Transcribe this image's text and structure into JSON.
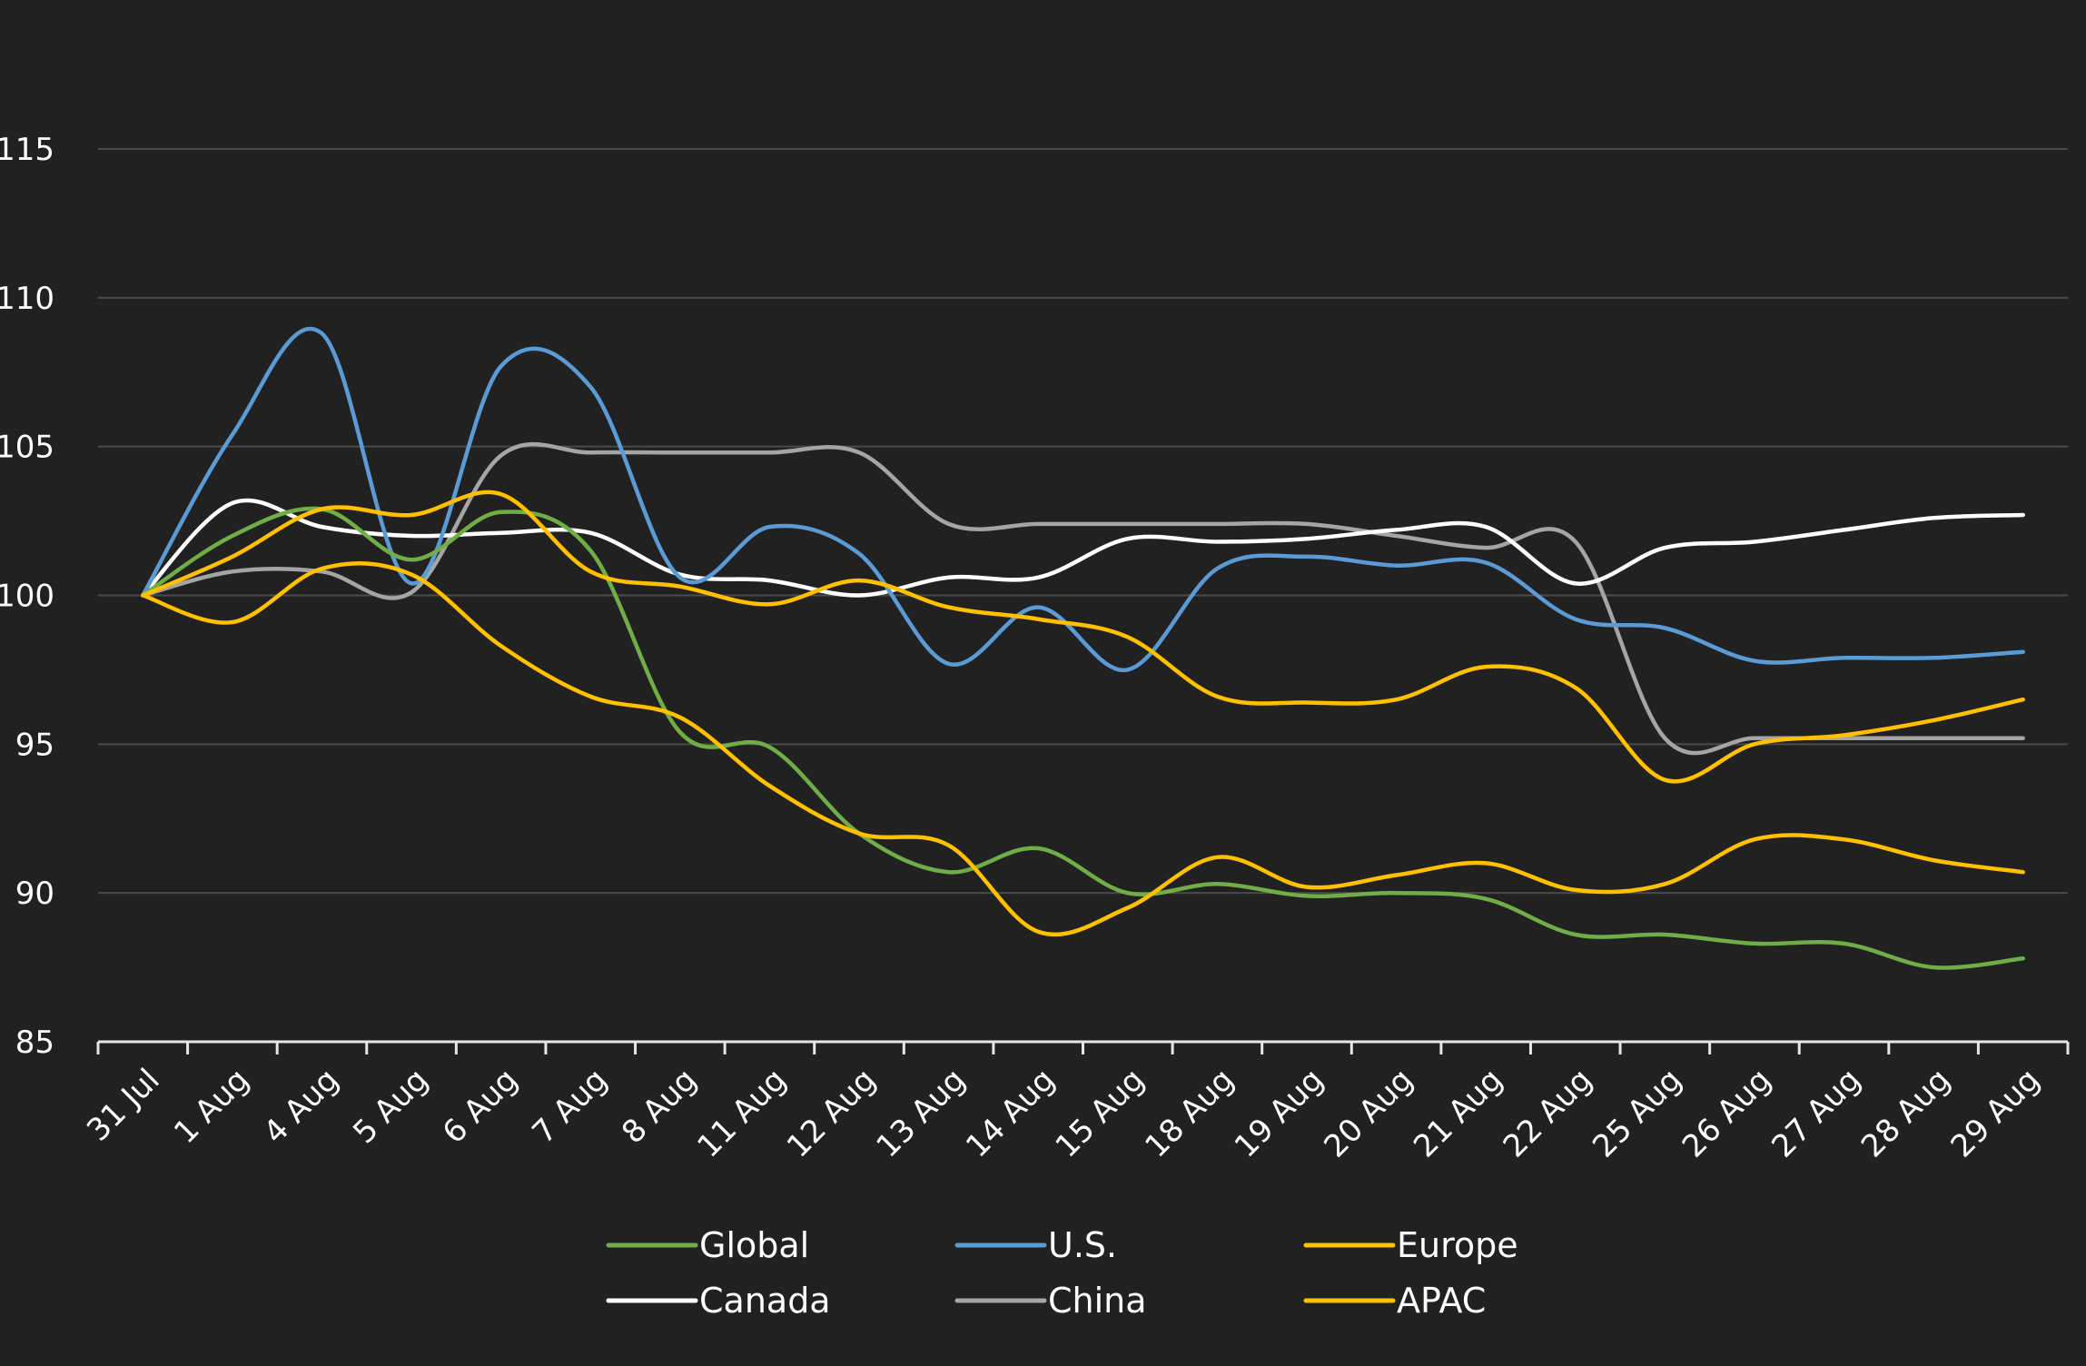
{
  "chart_data": {
    "type": "line",
    "title": "",
    "xlabel": "",
    "ylabel": "",
    "ylim": [
      85,
      115
    ],
    "yticks": [
      85,
      90,
      95,
      100,
      105,
      110,
      115
    ],
    "grid": true,
    "legend_position": "bottom",
    "categories": [
      "31 Jul",
      "1 Aug",
      "4 Aug",
      "5 Aug",
      "6 Aug",
      "7 Aug",
      "8 Aug",
      "11 Aug",
      "12 Aug",
      "13 Aug",
      "14 Aug",
      "15 Aug",
      "18 Aug",
      "19 Aug",
      "20 Aug",
      "21 Aug",
      "22 Aug",
      "25 Aug",
      "26 Aug",
      "27 Aug",
      "28 Aug",
      "29 Aug"
    ],
    "series": [
      {
        "name": "Global",
        "color": "#70AD47",
        "values": [
          100,
          102.0,
          102.9,
          101.2,
          102.8,
          101.5,
          95.4,
          94.9,
          92.0,
          90.7,
          91.5,
          90.0,
          90.3,
          89.9,
          90.0,
          89.8,
          88.6,
          88.6,
          88.3,
          88.3,
          87.5,
          87.8
        ]
      },
      {
        "name": "U.S.",
        "color": "#5B9BD5",
        "values": [
          100,
          105.4,
          108.8,
          100.4,
          107.7,
          107.0,
          100.6,
          102.3,
          101.4,
          97.7,
          99.6,
          97.5,
          100.9,
          101.3,
          101.0,
          101.1,
          99.2,
          98.9,
          97.8,
          97.9,
          97.9,
          98.1
        ]
      },
      {
        "name": "Europe",
        "color": "#FFC000",
        "values": [
          100,
          101.3,
          102.9,
          102.7,
          103.4,
          100.8,
          100.3,
          99.7,
          100.5,
          99.6,
          99.2,
          98.6,
          96.6,
          96.4,
          96.5,
          97.6,
          96.9,
          93.8,
          95.0,
          95.3,
          95.8,
          96.5
        ]
      },
      {
        "name": "Canada",
        "color": "#FFFFFF",
        "values": [
          100,
          103.1,
          102.3,
          102.0,
          102.1,
          102.1,
          100.7,
          100.5,
          100.0,
          100.6,
          100.6,
          101.9,
          101.8,
          101.9,
          102.2,
          102.3,
          100.4,
          101.6,
          101.8,
          102.2,
          102.6,
          102.7
        ]
      },
      {
        "name": "China",
        "color": "#A5A5A5",
        "values": [
          100,
          100.8,
          100.8,
          100.1,
          104.7,
          104.8,
          104.8,
          104.8,
          104.8,
          102.4,
          102.4,
          102.4,
          102.4,
          102.4,
          102.0,
          101.6,
          101.8,
          95.2,
          95.2,
          95.2,
          95.2,
          95.2
        ]
      },
      {
        "name": "APAC",
        "color": "#FFC000",
        "values": [
          100,
          99.1,
          100.9,
          100.7,
          98.3,
          96.6,
          95.9,
          93.6,
          92.0,
          91.6,
          88.7,
          89.5,
          91.2,
          90.2,
          90.6,
          91.0,
          90.1,
          90.3,
          91.8,
          91.8,
          91.1,
          90.7
        ]
      }
    ]
  }
}
